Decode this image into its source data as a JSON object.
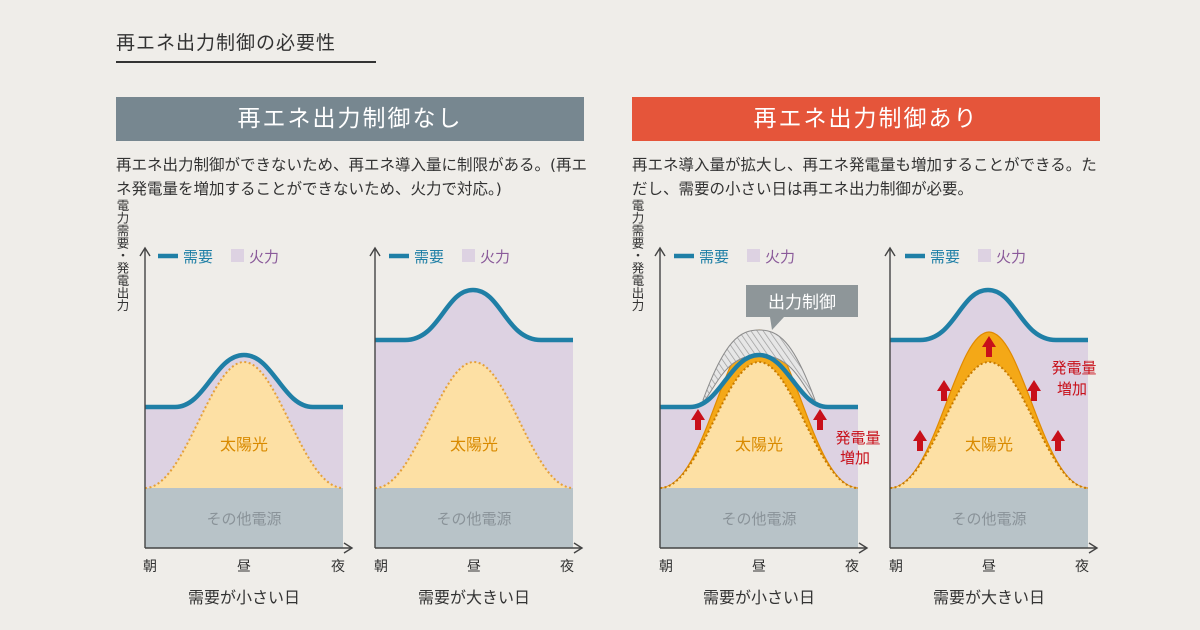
{
  "page_title": "再エネ出力制御の必要性",
  "colors": {
    "demand_line": "#1f7fa6",
    "thermal": "#ddd2e2",
    "solar": "#fde0a4",
    "solar_increase": "#f4a817",
    "other_sources": "#b8c3c8",
    "banner_off": "#778790",
    "banner_on": "#e5553a",
    "arrow": "#c8101a"
  },
  "panels": {
    "off": {
      "banner": "再エネ出力制御なし",
      "description": "再エネ出力制御ができないため、再エネ導入量に制限がある。(再エネ発電量を増加することができないため、火力で対応。)"
    },
    "on": {
      "banner": "再エネ出力制御あり",
      "description": "再エネ導入量が拡大し、再エネ発電量も増加することができる。ただし、需要の小さい日は再エネ出力制御が必要。"
    }
  },
  "legend": {
    "demand": "需要",
    "thermal": "火力"
  },
  "y_axis_label": "電力需要・発電出力",
  "x_ticks": [
    "朝",
    "昼",
    "夜"
  ],
  "labels": {
    "solar": "太陽光",
    "other_sources": "その他電源",
    "curtailment": "出力制御",
    "increase_line1": "発電量",
    "increase_line2": "増加"
  },
  "charts": [
    {
      "caption": "需要が小さい日"
    },
    {
      "caption": "需要が大きい日"
    },
    {
      "caption": "需要が小さい日"
    },
    {
      "caption": "需要が大きい日"
    }
  ]
}
